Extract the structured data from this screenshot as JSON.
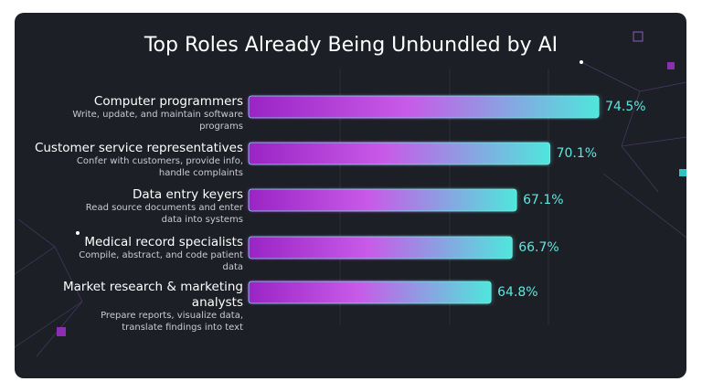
{
  "chart_data": {
    "type": "bar",
    "orientation": "horizontal",
    "title": "Top Roles Already Being Unbundled by AI",
    "categories": [
      "Computer programmers",
      "Customer service representatives",
      "Data entry keyers",
      "Medical record specialists",
      "Market research & marketing analysts"
    ],
    "descriptions": [
      "Write, update, and maintain software programs",
      "Confer with customers, provide info, handle complaints",
      "Read source documents and enter data into systems",
      "Compile, abstract, and code patient data",
      "Prepare reports, visualize data, translate findings into text"
    ],
    "values": [
      74.5,
      70.1,
      67.1,
      66.7,
      64.8
    ],
    "value_labels": [
      "74.5%",
      "70.1%",
      "67.1%",
      "66.7%",
      "64.8%"
    ],
    "xlim": [
      43,
      80
    ],
    "color_start": "#9a24c4",
    "color_mid": "#c85ae8",
    "color_end": "#4fe6dc"
  }
}
